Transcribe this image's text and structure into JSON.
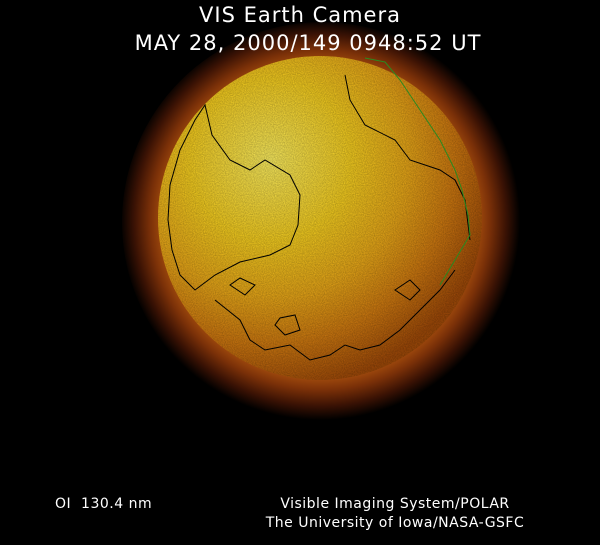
{
  "header": {
    "title": "VIS Earth Camera",
    "timestamp": "MAY 28, 2000/149 0948:52 UT"
  },
  "footer": {
    "filter": "OI  130.4 nm",
    "credit_lines": [
      "Visible Imaging System/POLAR",
      "The University of Iowa/NASA-GSFC"
    ]
  }
}
